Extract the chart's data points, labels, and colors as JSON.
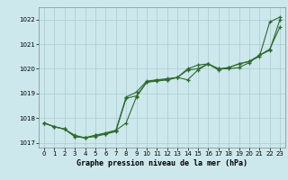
{
  "title": "Graphe pression niveau de la mer (hPa)",
  "bg_color": "#cce8ec",
  "grid_color": "#aacccc",
  "line_color": "#2d6a2d",
  "xlim": [
    -0.5,
    23.5
  ],
  "ylim": [
    1016.8,
    1022.5
  ],
  "yticks": [
    1017,
    1018,
    1019,
    1020,
    1021,
    1022
  ],
  "xticks": [
    0,
    1,
    2,
    3,
    4,
    5,
    6,
    7,
    8,
    9,
    10,
    11,
    12,
    13,
    14,
    15,
    16,
    17,
    18,
    19,
    20,
    21,
    22,
    23
  ],
  "series": {
    "line1": [
      1017.8,
      1017.65,
      1017.55,
      1017.25,
      1017.2,
      1017.3,
      1017.4,
      1017.5,
      1017.8,
      1018.85,
      1019.45,
      1019.55,
      1019.6,
      1019.65,
      1019.95,
      1020.0,
      1020.2,
      1019.95,
      1020.05,
      1020.2,
      1020.3,
      1020.5,
      1021.9,
      1022.1
    ],
    "line2": [
      1017.8,
      1017.65,
      1017.55,
      1017.25,
      1017.2,
      1017.3,
      1017.35,
      1017.45,
      1018.8,
      1018.9,
      1019.45,
      1019.5,
      1019.55,
      1019.65,
      1020.0,
      1020.15,
      1020.2,
      1020.0,
      1020.05,
      1020.2,
      1020.3,
      1020.55,
      1020.75,
      1022.0
    ],
    "line3": [
      1017.8,
      1017.65,
      1017.55,
      1017.3,
      1017.2,
      1017.25,
      1017.35,
      1017.5,
      1018.85,
      1019.05,
      1019.5,
      1019.55,
      1019.55,
      1019.65,
      1019.55,
      1019.95,
      1020.2,
      1020.0,
      1020.0,
      1020.05,
      1020.25,
      1020.55,
      1020.8,
      1021.7
    ]
  }
}
